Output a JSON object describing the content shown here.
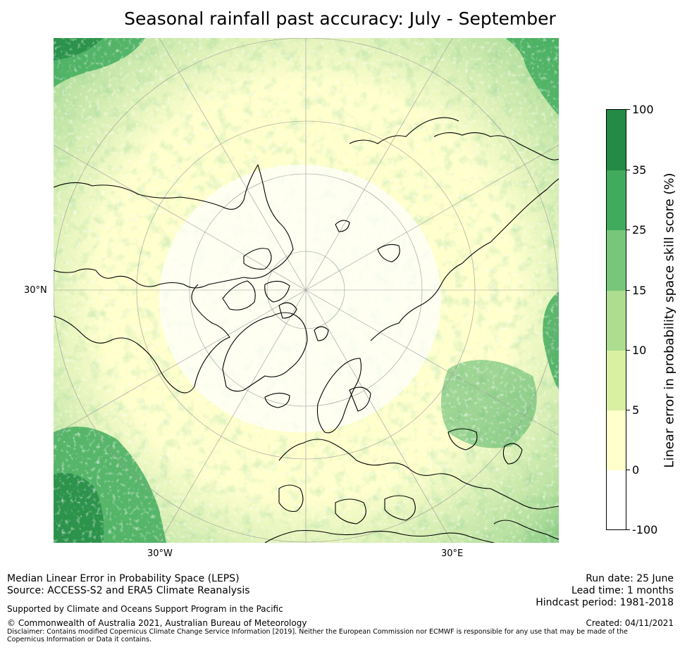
{
  "title": "Seasonal rainfall past accuracy: July - September",
  "map": {
    "projection": "north polar stereographic",
    "lat_label": "30°N",
    "lon_labels": {
      "west": "30°W",
      "east": "30°E"
    },
    "colors": {
      "ocean_dark": "#238b45",
      "band_35": "#41ab5d",
      "band_25": "#78c679",
      "band_15": "#addd8e",
      "band_10": "#d9f0a3",
      "band_5": "#ffffcc",
      "band_0": "#ffffff",
      "coastline": "#000000",
      "graticule": "#999999"
    }
  },
  "colorbar": {
    "label": "Linear error in probability space skill score (%)",
    "ticks": [
      "100",
      "35",
      "25",
      "15",
      "10",
      "5",
      "0",
      "-100"
    ],
    "segments": [
      {
        "from": "35",
        "to": "100",
        "color": "#238b45"
      },
      {
        "from": "25",
        "to": "35",
        "color": "#41ab5d"
      },
      {
        "from": "15",
        "to": "25",
        "color": "#78c679"
      },
      {
        "from": "10",
        "to": "15",
        "color": "#addd8e"
      },
      {
        "from": "5",
        "to": "10",
        "color": "#d9f0a3"
      },
      {
        "from": "0",
        "to": "5",
        "color": "#ffffcc"
      },
      {
        "from": "-100",
        "to": "0",
        "color": "#ffffff"
      }
    ]
  },
  "footer": {
    "method": "Median Linear Error in Probability Space (LEPS)",
    "source": "Source: ACCESS-S2 and ERA5 Climate Reanalysis",
    "support": "Supported by Climate and Oceans Support Program in the Pacific",
    "copyright": "© Commonwealth of Australia 2021, Australian Bureau of Meteorology",
    "disclaimer": "Disclaimer: Contains modified Copernicus Climate Change Service Information [2019]. Neither the European Commission nor ECMWF is responsible for any use that may be made of the Copernicus Information or Data it contains.",
    "run_date": "Run date: 25 June",
    "lead_time": "Lead time: 1 months",
    "hindcast": "Hindcast period: 1981-2018",
    "created": "Created: 04/11/2021"
  }
}
